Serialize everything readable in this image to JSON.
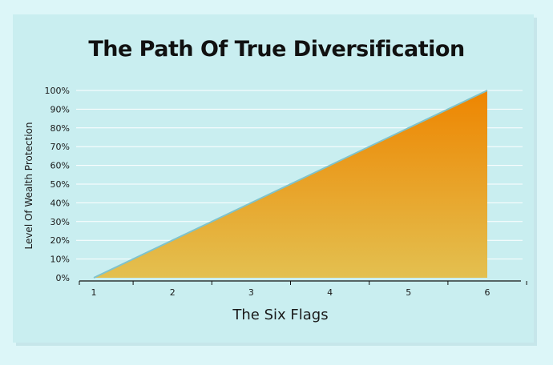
{
  "chart_data": {
    "type": "area",
    "title": "The Path Of True Diversification",
    "xlabel": "The Six Flags",
    "ylabel": "Level Of Wealth Protection",
    "categories": [
      "1",
      "2",
      "3",
      "4",
      "5",
      "6"
    ],
    "series": [
      {
        "values": [
          0,
          20,
          40,
          60,
          80,
          100
        ]
      }
    ],
    "y_ticks": [
      "0%",
      "10%",
      "20%",
      "30%",
      "40%",
      "50%",
      "60%",
      "70%",
      "80%",
      "90%",
      "100%"
    ],
    "ylim": [
      0,
      100
    ],
    "grid": true,
    "legend": "none",
    "colors": {
      "fill_top": "#ee8500",
      "fill_bottom": "#e3c050",
      "line": "#7fc3cc",
      "grid": "#ffffff",
      "background": "#c9eef0"
    }
  }
}
